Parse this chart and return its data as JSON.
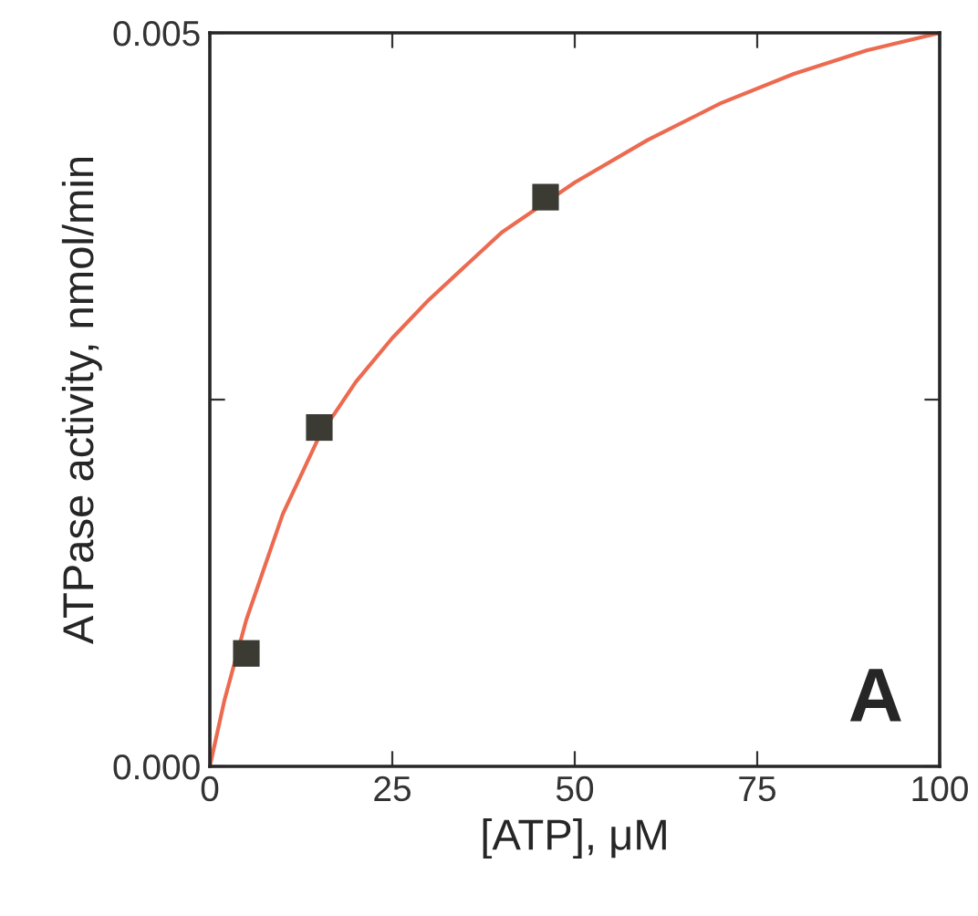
{
  "chart_data": {
    "type": "scatter",
    "xlabel": "[ATP], μM",
    "ylabel": "ATPase activity, nmol/min",
    "xlim": [
      0,
      100
    ],
    "ylim": [
      0,
      0.005
    ],
    "xticks": [
      0,
      25,
      50,
      75,
      100
    ],
    "yticks": [
      {
        "value": 0,
        "label": "0.000"
      },
      {
        "value": 0.0025,
        "label": null
      },
      {
        "value": 0.005,
        "label": "0.005"
      }
    ],
    "grid": false,
    "legend": false,
    "annotations": [
      "A"
    ],
    "series": [
      {
        "color": "#3b3b33",
        "marker": "square",
        "x": [
          5,
          15,
          46
        ],
        "values": [
          0.00077,
          0.00231,
          0.00388
        ]
      },
      {
        "type": "line",
        "color": "#ec6a50",
        "marker": "none",
        "line_style": "solid",
        "x": [
          0,
          2,
          5,
          10,
          15,
          20,
          25,
          30,
          40,
          50,
          60,
          70,
          80,
          90,
          100
        ],
        "values": [
          0,
          0.00045,
          0.001,
          0.00172,
          0.00225,
          0.00262,
          0.00292,
          0.00318,
          0.00364,
          0.00398,
          0.00427,
          0.00452,
          0.00472,
          0.00488,
          0.005
        ]
      }
    ]
  }
}
